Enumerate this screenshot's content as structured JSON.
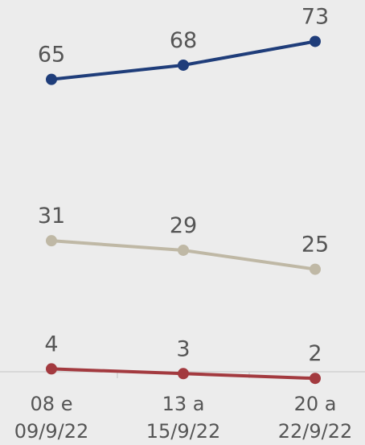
{
  "chart_data": {
    "type": "line",
    "categories": [
      [
        "08 e",
        "09/9/22"
      ],
      [
        "13 a",
        "15/9/22"
      ],
      [
        "20 a",
        "22/9/22"
      ]
    ],
    "series": [
      {
        "values": [
          65,
          68,
          73
        ],
        "color": "#1f3d7a"
      },
      {
        "values": [
          31,
          29,
          25
        ],
        "color": "#bfb8a5"
      },
      {
        "values": [
          4,
          3,
          2
        ],
        "color": "#a33a3f"
      }
    ],
    "ylim": [
      0,
      78
    ],
    "grid": false,
    "legend": "none",
    "data_labels": true
  }
}
